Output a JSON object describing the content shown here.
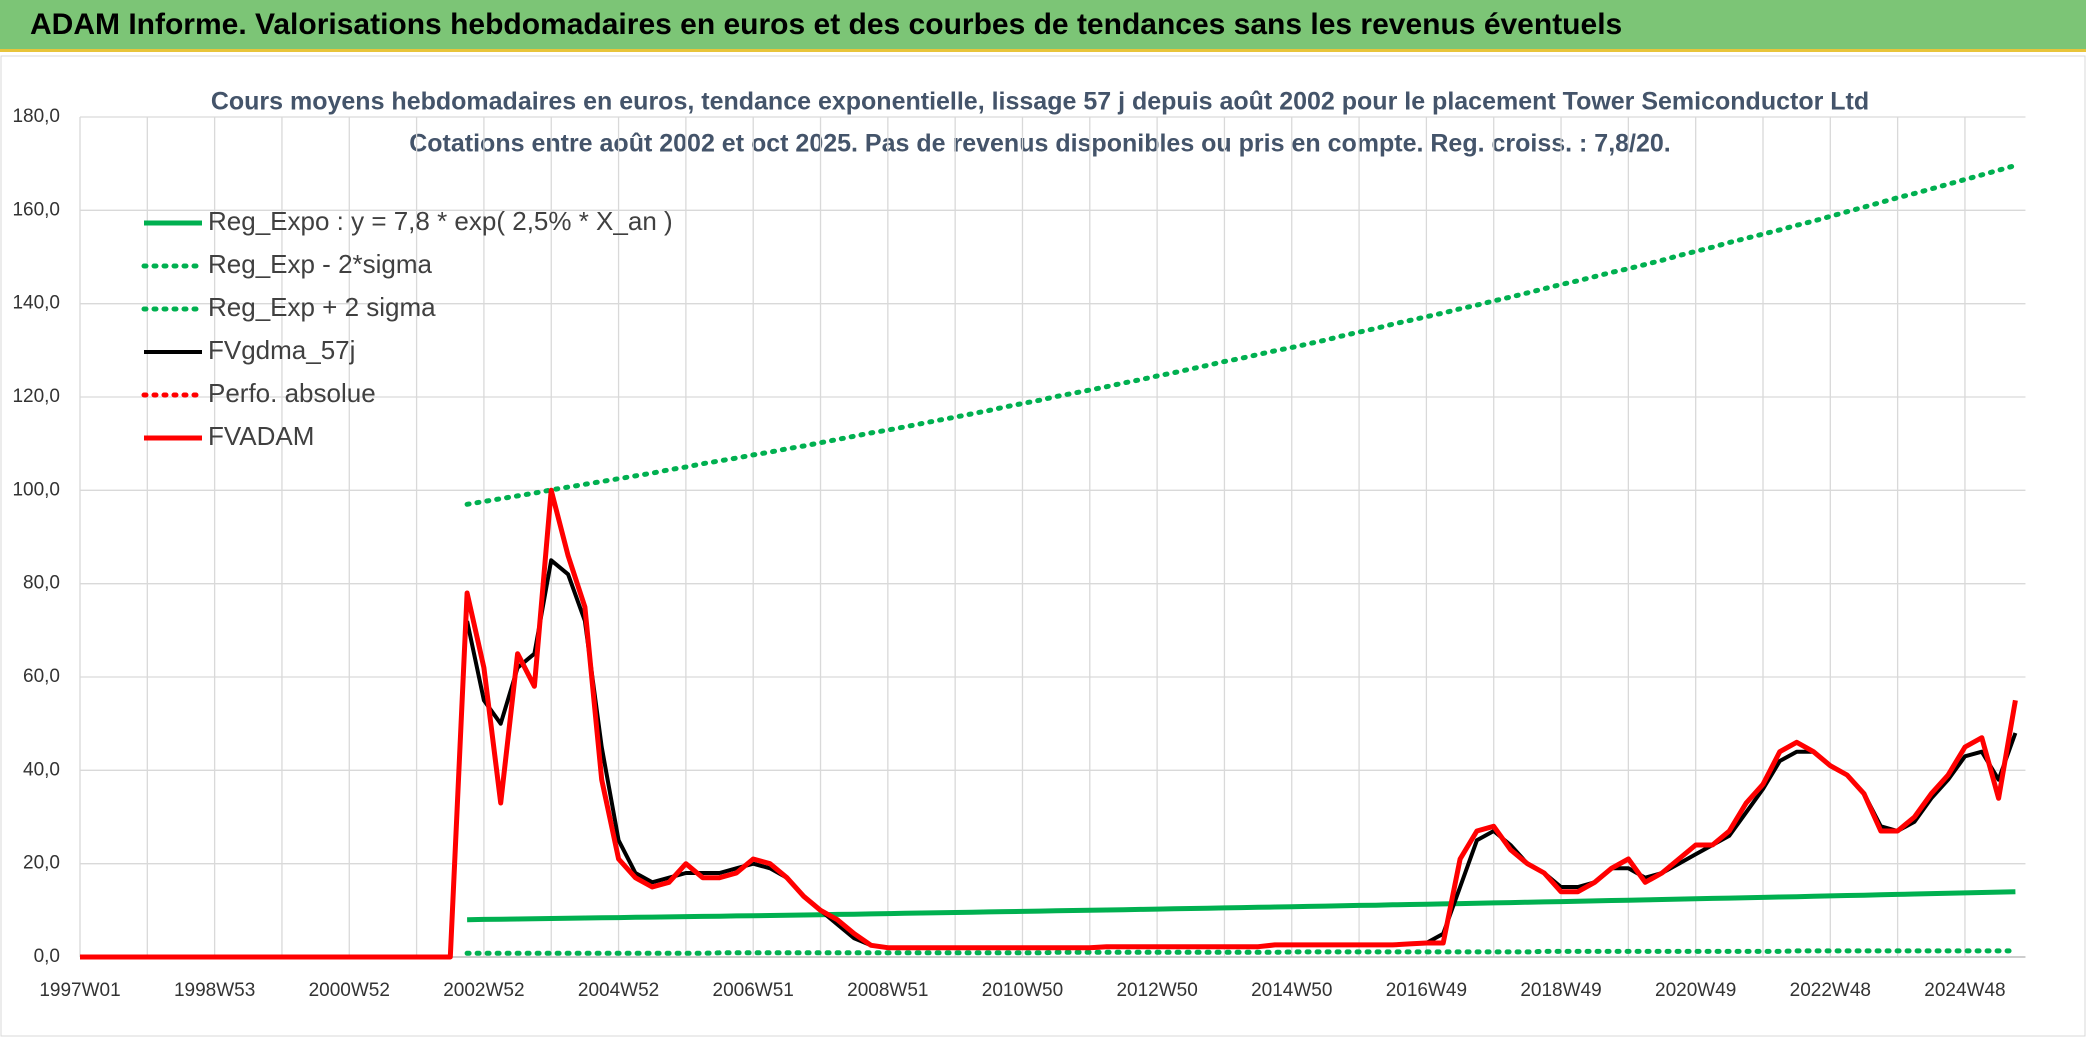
{
  "header": {
    "title": "ADAM Informe. Valorisations hebdomadaires en euros et des courbes de tendances sans les revenus éventuels"
  },
  "chart_data": {
    "type": "line",
    "title": "Cours moyens hebdomadaires en euros, tendance exponentielle, lissage 57 j depuis août 2002 pour le placement Tower Semiconductor Ltd",
    "subtitle": "Cotations entre août 2002 et oct 2025. Pas de revenus disponibles ou pris en compte. Reg. croiss. : 7,8/20.",
    "grid": true,
    "legend": "upper-left",
    "categories": [
      "1997W01",
      null,
      null,
      null,
      null,
      null,
      null,
      null,
      "1998W53",
      null,
      null,
      null,
      null,
      null,
      null,
      null,
      "2000W52",
      null,
      null,
      null,
      null,
      null,
      null,
      null,
      "2002W52",
      null,
      null,
      null,
      null,
      null,
      null,
      null,
      "2004W52",
      null,
      null,
      null,
      null,
      null,
      null,
      null,
      "2006W51",
      null,
      null,
      null,
      null,
      null,
      null,
      null,
      "2008W51",
      null,
      null,
      null,
      null,
      null,
      null,
      null,
      "2010W50",
      null,
      null,
      null,
      null,
      null,
      null,
      null,
      "2012W50",
      null,
      null,
      null,
      null,
      null,
      null,
      null,
      "2014W50",
      null,
      null,
      null,
      null,
      null,
      null,
      null,
      "2016W49",
      null,
      null,
      null,
      null,
      null,
      null,
      null,
      "2018W49",
      null,
      null,
      null,
      null,
      null,
      null,
      null,
      "2020W49",
      null,
      null,
      null,
      null,
      null,
      null,
      null,
      "2022W48",
      null,
      null,
      null,
      null,
      null,
      null,
      null,
      "2024W48",
      null,
      null,
      null
    ],
    "ylim": [
      0,
      180
    ],
    "yticks": [
      {
        "value": 0,
        "label": "0,0"
      },
      {
        "value": 20,
        "label": "20,0"
      },
      {
        "value": 40,
        "label": "40,0"
      },
      {
        "value": 60,
        "label": "60,0"
      },
      {
        "value": 80,
        "label": "80,0"
      },
      {
        "value": 100,
        "label": "100,0"
      },
      {
        "value": 120,
        "label": "120,0"
      },
      {
        "value": 140,
        "label": "140,0"
      },
      {
        "value": 160,
        "label": "160,0"
      },
      {
        "value": 180,
        "label": "180,0"
      }
    ],
    "series": [
      {
        "name": "Reg_Expo : y = 7,8 * exp( 2,5% *  X_an )",
        "color": "#00b050",
        "style": "solid",
        "values": [
          null,
          null,
          null,
          null,
          null,
          null,
          null,
          null,
          null,
          null,
          null,
          null,
          null,
          null,
          null,
          null,
          null,
          null,
          null,
          null,
          null,
          null,
          null,
          8.0,
          8.05,
          8.1,
          8.15,
          8.2,
          8.25,
          8.3,
          8.35,
          8.4,
          8.45,
          8.5,
          8.55,
          8.6,
          8.65,
          8.7,
          8.75,
          8.8,
          8.85,
          8.9,
          8.95,
          9.0,
          9.06,
          9.12,
          9.18,
          9.24,
          9.3,
          9.36,
          9.42,
          9.48,
          9.54,
          9.6,
          9.66,
          9.72,
          9.78,
          9.84,
          9.9,
          9.96,
          10.02,
          10.08,
          10.14,
          10.2,
          10.26,
          10.33,
          10.39,
          10.46,
          10.52,
          10.58,
          10.65,
          10.71,
          10.78,
          10.84,
          10.91,
          10.98,
          11.05,
          11.11,
          11.18,
          11.25,
          11.32,
          11.38,
          11.45,
          11.52,
          11.59,
          11.66,
          11.74,
          11.81,
          11.88,
          11.95,
          12.02,
          12.1,
          12.17,
          12.24,
          12.32,
          12.4,
          12.47,
          12.55,
          12.63,
          12.7,
          12.78,
          12.86,
          12.93,
          13.01,
          13.09,
          13.17,
          13.25,
          13.33,
          13.41,
          13.5,
          13.58,
          13.66,
          13.74,
          13.82,
          13.9,
          13.99
        ]
      },
      {
        "name": "Reg_Exp - 2*sigma",
        "color": "#00b050",
        "style": "dotted",
        "values": [
          null,
          null,
          null,
          null,
          null,
          null,
          null,
          null,
          null,
          null,
          null,
          null,
          null,
          null,
          null,
          null,
          null,
          null,
          null,
          null,
          null,
          null,
          null,
          0.8,
          0.8,
          0.8,
          0.8,
          0.8,
          0.8,
          0.8,
          0.8,
          0.8,
          0.8,
          0.8,
          0.8,
          0.8,
          0.8,
          0.8,
          0.9,
          0.9,
          0.9,
          0.9,
          0.9,
          0.9,
          0.9,
          0.9,
          0.9,
          0.9,
          0.9,
          0.9,
          0.9,
          0.9,
          0.9,
          0.9,
          0.9,
          0.9,
          0.9,
          0.9,
          1.0,
          1.0,
          1.0,
          1.0,
          1.0,
          1.0,
          1.0,
          1.0,
          1.0,
          1.0,
          1.0,
          1.0,
          1.0,
          1.0,
          1.1,
          1.1,
          1.1,
          1.1,
          1.1,
          1.1,
          1.1,
          1.1,
          1.1,
          1.1,
          1.1,
          1.1,
          1.1,
          1.1,
          1.1,
          1.2,
          1.2,
          1.2,
          1.2,
          1.2,
          1.2,
          1.2,
          1.2,
          1.2,
          1.2,
          1.2,
          1.2,
          1.2,
          1.2,
          1.2,
          1.3,
          1.3,
          1.3,
          1.3,
          1.3,
          1.3,
          1.3,
          1.3,
          1.3,
          1.3,
          1.3,
          1.3,
          1.3,
          1.3
        ]
      },
      {
        "name": "Reg_Exp + 2 sigma",
        "color": "#00b050",
        "style": "dotted",
        "values": [
          null,
          null,
          null,
          null,
          null,
          null,
          null,
          null,
          null,
          null,
          null,
          null,
          null,
          null,
          null,
          null,
          null,
          null,
          null,
          null,
          null,
          null,
          null,
          97.0,
          97.6,
          98.2,
          98.8,
          99.4,
          100.1,
          100.7,
          101.3,
          101.9,
          102.5,
          103.1,
          103.7,
          104.4,
          105.0,
          105.7,
          106.3,
          106.9,
          107.6,
          108.2,
          108.9,
          109.5,
          110.2,
          110.9,
          111.6,
          112.3,
          112.9,
          113.6,
          114.3,
          115.0,
          115.7,
          116.4,
          117.1,
          117.9,
          118.6,
          119.3,
          120.1,
          120.8,
          121.5,
          122.2,
          123.0,
          123.7,
          124.5,
          125.2,
          126.0,
          126.8,
          127.6,
          128.3,
          129.1,
          129.9,
          130.6,
          131.4,
          132.2,
          133.1,
          133.9,
          134.7,
          135.6,
          136.4,
          137.2,
          138.0,
          138.9,
          139.7,
          140.6,
          141.4,
          142.3,
          143.2,
          144.1,
          144.9,
          145.8,
          146.7,
          147.5,
          148.4,
          149.3,
          150.3,
          151.2,
          152.1,
          153.1,
          154.0,
          154.9,
          155.8,
          156.8,
          157.7,
          158.7,
          159.7,
          160.7,
          161.7,
          162.7,
          163.6,
          164.6,
          165.6,
          166.6,
          167.6,
          168.6,
          169.6
        ]
      },
      {
        "name": "FVgdma_57j",
        "color": "#000000",
        "style": "solid",
        "values": [
          null,
          null,
          null,
          null,
          null,
          null,
          null,
          null,
          null,
          null,
          null,
          null,
          null,
          null,
          null,
          null,
          null,
          null,
          null,
          null,
          null,
          null,
          null,
          72,
          55,
          50,
          62,
          65,
          85,
          82,
          72,
          45,
          25,
          18,
          16,
          17,
          18,
          18,
          18,
          19,
          20,
          19,
          17,
          13,
          10,
          7,
          4,
          2.5,
          2,
          2,
          2,
          2,
          2,
          2,
          2,
          2,
          2,
          2,
          2,
          2,
          2,
          2.2,
          2.2,
          2.2,
          2.2,
          2.2,
          2.2,
          2.2,
          2.2,
          2.2,
          2.2,
          2.6,
          2.6,
          2.6,
          2.6,
          2.6,
          2.6,
          2.6,
          2.6,
          2.8,
          3,
          5,
          15,
          25,
          27,
          24,
          20,
          18,
          15,
          15,
          16,
          19,
          19,
          17,
          18,
          20,
          22,
          24,
          26,
          31,
          36,
          42,
          44,
          44,
          41,
          39,
          35,
          28,
          27,
          29,
          34,
          38,
          43,
          44,
          38,
          48
        ]
      },
      {
        "name": "Perfo. absolue",
        "color": "#ff0000",
        "style": "dotted",
        "values": [
          null,
          null,
          null,
          null,
          null,
          null,
          null,
          null,
          null,
          null,
          null,
          null,
          null,
          null,
          null,
          null,
          null,
          null,
          null,
          null,
          null,
          null,
          null,
          null,
          null,
          null,
          null,
          null,
          null,
          null,
          null,
          null,
          null,
          null,
          null,
          null,
          null,
          null,
          null,
          null,
          null,
          null,
          null,
          null,
          null,
          null,
          null,
          null,
          null,
          null,
          null,
          null,
          null,
          null,
          null,
          null,
          null,
          null,
          null,
          null,
          null,
          null,
          null,
          null,
          null,
          null,
          null,
          null,
          null,
          null,
          null,
          null,
          null,
          null,
          null,
          null,
          null,
          null,
          null,
          null,
          null,
          null,
          null,
          null,
          null,
          null,
          null,
          null,
          null,
          null,
          null,
          null,
          null,
          null,
          null,
          null,
          null,
          null,
          null,
          null,
          null,
          null,
          null,
          null,
          null,
          null,
          null,
          null,
          null,
          null,
          null,
          null,
          null,
          null,
          null,
          null
        ]
      },
      {
        "name": "FVADAM",
        "color": "#ff0000",
        "style": "solid",
        "values": [
          0,
          0,
          0,
          0,
          0,
          0,
          0,
          0,
          0,
          0,
          0,
          0,
          0,
          0,
          0,
          0,
          0,
          0,
          0,
          0,
          0,
          0,
          0,
          78,
          62,
          33,
          65,
          58,
          100,
          86,
          75,
          38,
          21,
          17,
          15,
          16,
          20,
          17,
          17,
          18,
          21,
          20,
          17,
          13,
          10,
          8,
          5,
          2.5,
          2,
          2,
          2,
          2,
          2,
          2,
          2,
          2,
          2,
          2,
          2,
          2,
          2,
          2.2,
          2.2,
          2.2,
          2.2,
          2.2,
          2.2,
          2.2,
          2.2,
          2.2,
          2.2,
          2.6,
          2.6,
          2.6,
          2.6,
          2.6,
          2.6,
          2.6,
          2.6,
          2.8,
          3,
          3,
          21,
          27,
          28,
          23,
          20,
          18,
          14,
          14,
          16,
          19,
          21,
          16,
          18,
          21,
          24,
          24,
          27,
          33,
          37,
          44,
          46,
          44,
          41,
          39,
          35,
          27,
          27,
          30,
          35,
          39,
          45,
          47,
          34,
          55
        ]
      }
    ]
  }
}
